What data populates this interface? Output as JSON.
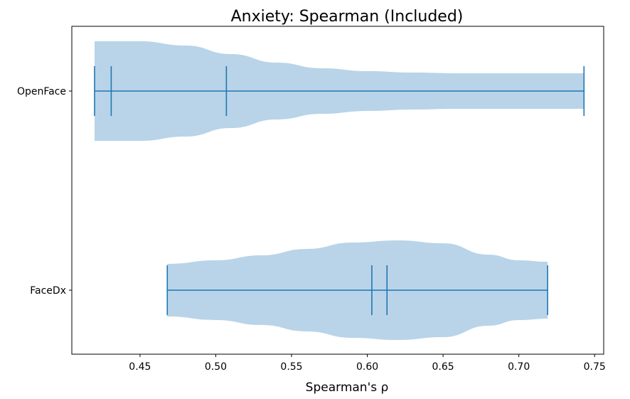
{
  "chart_data": {
    "type": "violin",
    "orientation": "horizontal",
    "title": "Anxiety: Spearman (Included)",
    "xlabel": "Spearman's ρ",
    "ylabel": "",
    "xlim": [
      0.405,
      0.756
    ],
    "xticks": [
      0.45,
      0.5,
      0.55,
      0.6,
      0.65,
      0.7,
      0.75
    ],
    "xtick_labels": [
      "0.45",
      "0.50",
      "0.55",
      "0.60",
      "0.65",
      "0.70",
      "0.75"
    ],
    "categories": [
      "OpenFace",
      "FaceDx"
    ],
    "grid": false,
    "colors": {
      "body": "#b9d4e8",
      "lines": "#1f77b4"
    },
    "series": [
      {
        "category": "OpenFace",
        "min": 0.42,
        "max": 0.743,
        "quantile_marks": [
          0.431,
          0.507
        ],
        "density_profile": [
          [
            0.42,
            0.7
          ],
          [
            0.45,
            0.7
          ],
          [
            0.48,
            0.64
          ],
          [
            0.51,
            0.52
          ],
          [
            0.54,
            0.4
          ],
          [
            0.57,
            0.32
          ],
          [
            0.6,
            0.28
          ],
          [
            0.63,
            0.26
          ],
          [
            0.66,
            0.25
          ],
          [
            0.69,
            0.25
          ],
          [
            0.72,
            0.25
          ],
          [
            0.743,
            0.25
          ]
        ]
      },
      {
        "category": "FaceDx",
        "min": 0.468,
        "max": 0.719,
        "quantile_marks": [
          0.603,
          0.613
        ],
        "density_profile": [
          [
            0.468,
            0.37
          ],
          [
            0.5,
            0.42
          ],
          [
            0.53,
            0.49
          ],
          [
            0.56,
            0.58
          ],
          [
            0.59,
            0.67
          ],
          [
            0.62,
            0.7
          ],
          [
            0.65,
            0.66
          ],
          [
            0.68,
            0.5
          ],
          [
            0.7,
            0.42
          ],
          [
            0.719,
            0.4
          ]
        ]
      }
    ]
  }
}
